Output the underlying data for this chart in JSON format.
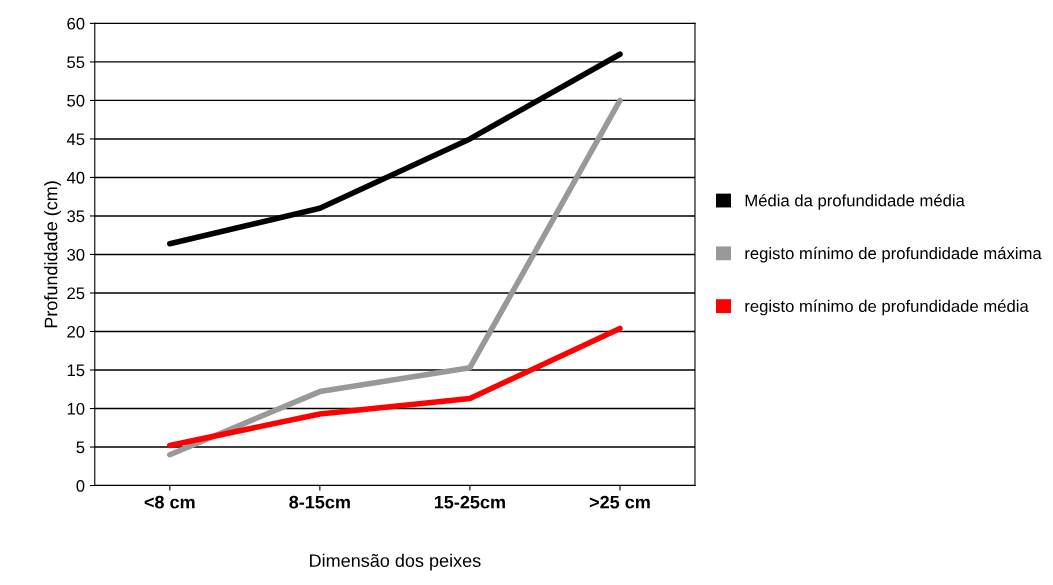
{
  "chart_data": {
    "type": "line",
    "xlabel": "Dimensão dos peixes",
    "ylabel": "Profundidade (cm)",
    "categories": [
      "<8 cm",
      "8-15cm",
      "15-25cm",
      ">25 cm"
    ],
    "series": [
      {
        "name": "Média da profundidade média",
        "color": "#000000",
        "values": [
          31.4,
          36,
          45,
          56
        ]
      },
      {
        "name": "registo mínimo de profundidade máxima",
        "color": "#999999",
        "values": [
          4,
          12.2,
          15.3,
          50
        ]
      },
      {
        "name": "registo mínimo de profundidade média",
        "color": "#ff0000",
        "values": [
          5.2,
          9.3,
          11.3,
          20.4
        ]
      }
    ],
    "ylim": [
      0,
      60
    ],
    "yticks": [
      0,
      5,
      10,
      15,
      20,
      25,
      30,
      35,
      40,
      45,
      50,
      55,
      60
    ],
    "grid": "y",
    "legend": "right",
    "marker": "none",
    "line_style": "solid"
  }
}
